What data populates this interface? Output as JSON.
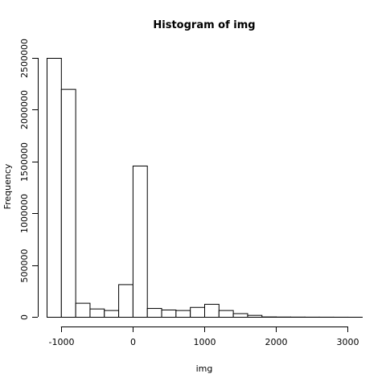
{
  "chart_data": {
    "type": "bar",
    "title": "Histogram of img",
    "xlabel": "img",
    "ylabel": "Frequency",
    "bin_edges": [
      -1200,
      -1000,
      -800,
      -600,
      -400,
      -200,
      0,
      200,
      400,
      600,
      800,
      1000,
      1200,
      1400,
      1600,
      1800,
      2000,
      2200,
      2400,
      2600,
      2800,
      3000,
      3200
    ],
    "values": [
      2500000,
      2200000,
      135000,
      80000,
      65000,
      315000,
      1460000,
      85000,
      70000,
      65000,
      95000,
      125000,
      65000,
      35000,
      18000,
      3000,
      2000,
      1500,
      1000,
      800,
      500,
      300
    ],
    "xlim": [
      -1200,
      3200
    ],
    "ylim": [
      0,
      2500000
    ],
    "xticks": [
      -1000,
      0,
      1000,
      2000,
      3000
    ],
    "yticks": [
      0,
      500000,
      1000000,
      1500000,
      2000000,
      2500000
    ],
    "grid": false,
    "legend": "none"
  }
}
